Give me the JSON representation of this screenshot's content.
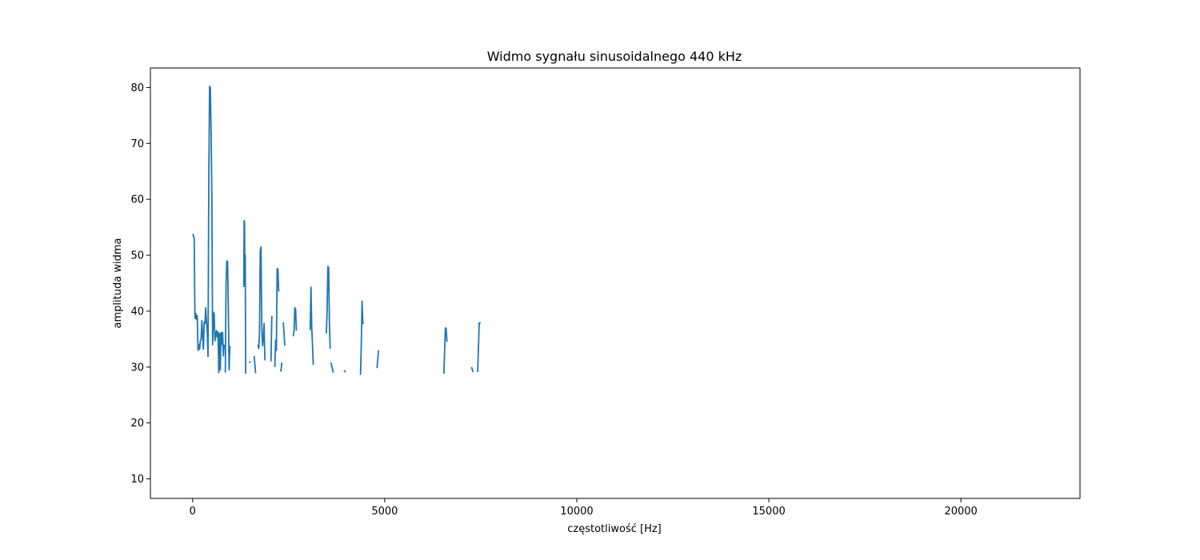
{
  "chart_data": {
    "type": "line",
    "title": "Widmo sygnału sinusoidalnego 440 kHz",
    "xlabel": "częstotliwość [Hz]",
    "ylabel": "amplituda widma",
    "xlim": [
      -1100,
      23100
    ],
    "ylim": [
      6.5,
      83.5
    ],
    "xticks": [
      0,
      5000,
      10000,
      15000,
      20000
    ],
    "xtick_labels": [
      "0",
      "5000",
      "10000",
      "15000",
      "20000"
    ],
    "yticks": [
      10,
      20,
      30,
      40,
      50,
      60,
      70,
      80
    ],
    "ytick_labels": [
      "10",
      "20",
      "30",
      "40",
      "50",
      "60",
      "70",
      "80"
    ],
    "grid": false,
    "color": "#1f77b4",
    "series": [
      {
        "segments": [
          [
            [
              0,
              53.8
            ],
            [
              20,
              53.5
            ],
            [
              40,
              53.0
            ],
            [
              60,
              38.7
            ],
            [
              80,
              39.6
            ],
            [
              100,
              38.5
            ],
            [
              120,
              39.2
            ],
            [
              140,
              33.0
            ],
            [
              160,
              34.0
            ],
            [
              180,
              33.2
            ],
            [
              200,
              34.7
            ],
            [
              220,
              35.0
            ],
            [
              240,
              38.3
            ],
            [
              260,
              35.5
            ],
            [
              280,
              33.2
            ],
            [
              300,
              38.0
            ],
            [
              320,
              37.8
            ],
            [
              340,
              40.6
            ],
            [
              360,
              38.0
            ],
            [
              380,
              36.5
            ],
            [
              400,
              31.9
            ],
            [
              420,
              63.0
            ],
            [
              440,
              80.2
            ],
            [
              460,
              80.0
            ],
            [
              480,
              72.0
            ],
            [
              500,
              60.5
            ],
            [
              520,
              34.0
            ],
            [
              540,
              39.8
            ],
            [
              560,
              39.5
            ],
            [
              580,
              34.7
            ],
            [
              600,
              35.8
            ],
            [
              620,
              36.5
            ],
            [
              640,
              35.3
            ],
            [
              660,
              36.3
            ],
            [
              680,
              29.0
            ],
            [
              700,
              36.0
            ],
            [
              720,
              29.5
            ],
            [
              740,
              36.2
            ],
            [
              760,
              34.0
            ],
            [
              780,
              36.2
            ],
            [
              800,
              32.0
            ],
            [
              820,
              34.0
            ]
          ],
          [
            [
              850,
              29.0
            ],
            [
              870,
              45.0
            ],
            [
              890,
              49.0
            ],
            [
              910,
              48.8
            ],
            [
              930,
              40.0
            ],
            [
              950,
              29.5
            ],
            [
              970,
              33.8
            ]
          ],
          [
            [
              1330,
              44.3
            ],
            [
              1340,
              56.2
            ],
            [
              1350,
              56.0
            ],
            [
              1360,
              44.8
            ],
            [
              1370,
              50.0
            ],
            [
              1380,
              28.8
            ]
          ],
          [
            [
              1470,
              30.8
            ],
            [
              1510,
              31.0
            ]
          ],
          [
            [
              1600,
              32.0
            ],
            [
              1640,
              28.9
            ]
          ],
          [
            [
              1700,
              34.0
            ],
            [
              1720,
              33.3
            ],
            [
              1740,
              36.0
            ],
            [
              1760,
              50.7
            ],
            [
              1780,
              51.5
            ],
            [
              1800,
              37.0
            ],
            [
              1820,
              33.8
            ],
            [
              1840,
              35.2
            ],
            [
              1860,
              37.8
            ],
            [
              1880,
              31.2
            ]
          ],
          [
            [
              2040,
              31.0
            ],
            [
              2060,
              39.0
            ],
            [
              2080,
              38.8
            ]
          ],
          [
            [
              2140,
              30.0
            ],
            [
              2160,
              34.8
            ],
            [
              2180,
              33.0
            ],
            [
              2200,
              47.6
            ],
            [
              2220,
              47.5
            ],
            [
              2240,
              43.5
            ]
          ],
          [
            [
              2280,
              29.5
            ],
            [
              2300,
              29.3
            ],
            [
              2320,
              30.8
            ]
          ],
          [
            [
              2360,
              38.0
            ],
            [
              2400,
              33.8
            ]
          ],
          [
            [
              2620,
              35.5
            ],
            [
              2640,
              36.5
            ],
            [
              2660,
              40.6
            ],
            [
              2680,
              40.4
            ],
            [
              2700,
              36.5
            ]
          ],
          [
            [
              3060,
              36.6
            ],
            [
              3080,
              44.3
            ],
            [
              3100,
              37.0
            ],
            [
              3120,
              34.0
            ],
            [
              3140,
              30.4
            ]
          ],
          [
            [
              3480,
              36.0
            ],
            [
              3500,
              40.0
            ],
            [
              3520,
              48.0
            ],
            [
              3540,
              47.8
            ],
            [
              3560,
              38.0
            ],
            [
              3580,
              33.3
            ]
          ],
          [
            [
              3600,
              30.8
            ],
            [
              3660,
              29.0
            ]
          ],
          [
            [
              3940,
              29.4
            ],
            [
              3980,
              29.1
            ]
          ],
          [
            [
              4370,
              28.6
            ],
            [
              4390,
              34.0
            ],
            [
              4410,
              41.8
            ],
            [
              4430,
              37.8
            ],
            [
              4450,
              38.0
            ]
          ],
          [
            [
              4800,
              29.8
            ],
            [
              4840,
              33.0
            ]
          ],
          [
            [
              6540,
              28.8
            ],
            [
              6560,
              33.0
            ],
            [
              6580,
              37.0
            ],
            [
              6600,
              36.8
            ],
            [
              6620,
              34.5
            ]
          ],
          [
            [
              7260,
              30.0
            ],
            [
              7300,
              29.1
            ]
          ],
          [
            [
              7420,
              29.1
            ],
            [
              7460,
              37.9
            ],
            [
              7500,
              37.9
            ]
          ]
        ]
      }
    ]
  }
}
